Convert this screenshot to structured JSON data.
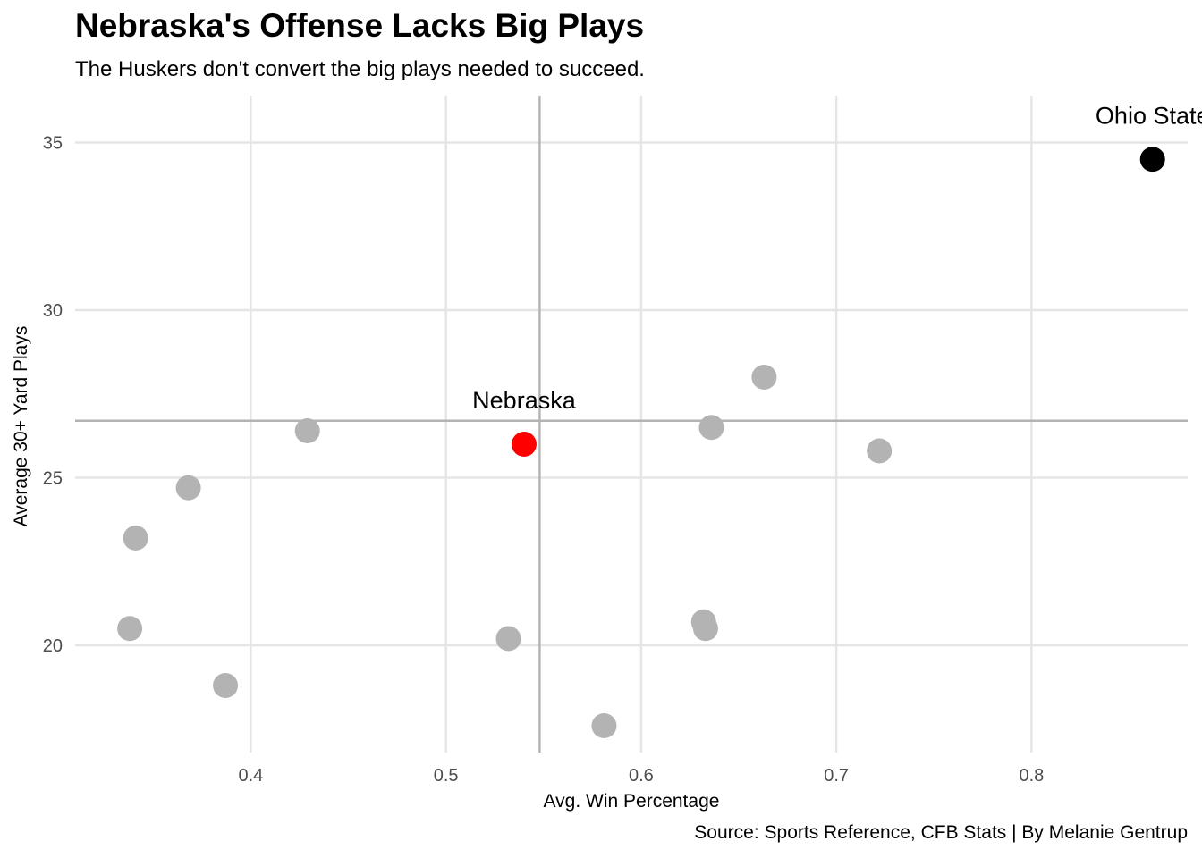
{
  "chart_data": {
    "type": "scatter",
    "title": "Nebraska's Offense Lacks Big Plays",
    "subtitle": "The Huskers don't convert the big plays needed to succeed.",
    "caption": "Source: Sports Reference, CFB Stats | By Melanie Gentrup",
    "xlabel": "Avg. Win Percentage",
    "ylabel": "Average 30+ Yard Plays",
    "xlim": [
      0.31,
      0.88
    ],
    "ylim": [
      16.8,
      36.4
    ],
    "x_ticks": [
      0.4,
      0.5,
      0.6,
      0.7,
      0.8
    ],
    "y_ticks": [
      20,
      25,
      30,
      35
    ],
    "x_tick_labels": [
      "0.4",
      "0.5",
      "0.6",
      "0.7",
      "0.8"
    ],
    "y_tick_labels": [
      "20",
      "25",
      "30",
      "35"
    ],
    "grid": true,
    "reference_lines": {
      "x_mean": 0.548,
      "y_mean": 26.7
    },
    "colors": {
      "default_point": "#b3b3b3",
      "highlight_point": "#ff0000",
      "top_point": "#000000",
      "gridline": "#e5e5e5",
      "reference_line": "#b3b3b3",
      "tick_label": "#4d4d4d"
    },
    "points": [
      {
        "x": 0.862,
        "y": 34.5,
        "label": "Ohio State",
        "color": "#000000"
      },
      {
        "x": 0.663,
        "y": 28.0,
        "label": "",
        "color": "#b3b3b3"
      },
      {
        "x": 0.636,
        "y": 26.5,
        "label": "",
        "color": "#b3b3b3"
      },
      {
        "x": 0.722,
        "y": 25.8,
        "label": "",
        "color": "#b3b3b3"
      },
      {
        "x": 0.54,
        "y": 26.0,
        "label": "Nebraska",
        "color": "#ff0000"
      },
      {
        "x": 0.429,
        "y": 26.4,
        "label": "",
        "color": "#b3b3b3"
      },
      {
        "x": 0.368,
        "y": 24.7,
        "label": "",
        "color": "#b3b3b3"
      },
      {
        "x": 0.341,
        "y": 23.2,
        "label": "",
        "color": "#b3b3b3"
      },
      {
        "x": 0.338,
        "y": 20.5,
        "label": "",
        "color": "#b3b3b3"
      },
      {
        "x": 0.387,
        "y": 18.8,
        "label": "",
        "color": "#b3b3b3"
      },
      {
        "x": 0.532,
        "y": 20.2,
        "label": "",
        "color": "#b3b3b3"
      },
      {
        "x": 0.581,
        "y": 17.6,
        "label": "",
        "color": "#b3b3b3"
      },
      {
        "x": 0.632,
        "y": 20.7,
        "label": "",
        "color": "#b3b3b3"
      },
      {
        "x": 0.633,
        "y": 20.5,
        "label": "",
        "color": "#b3b3b3"
      }
    ]
  }
}
